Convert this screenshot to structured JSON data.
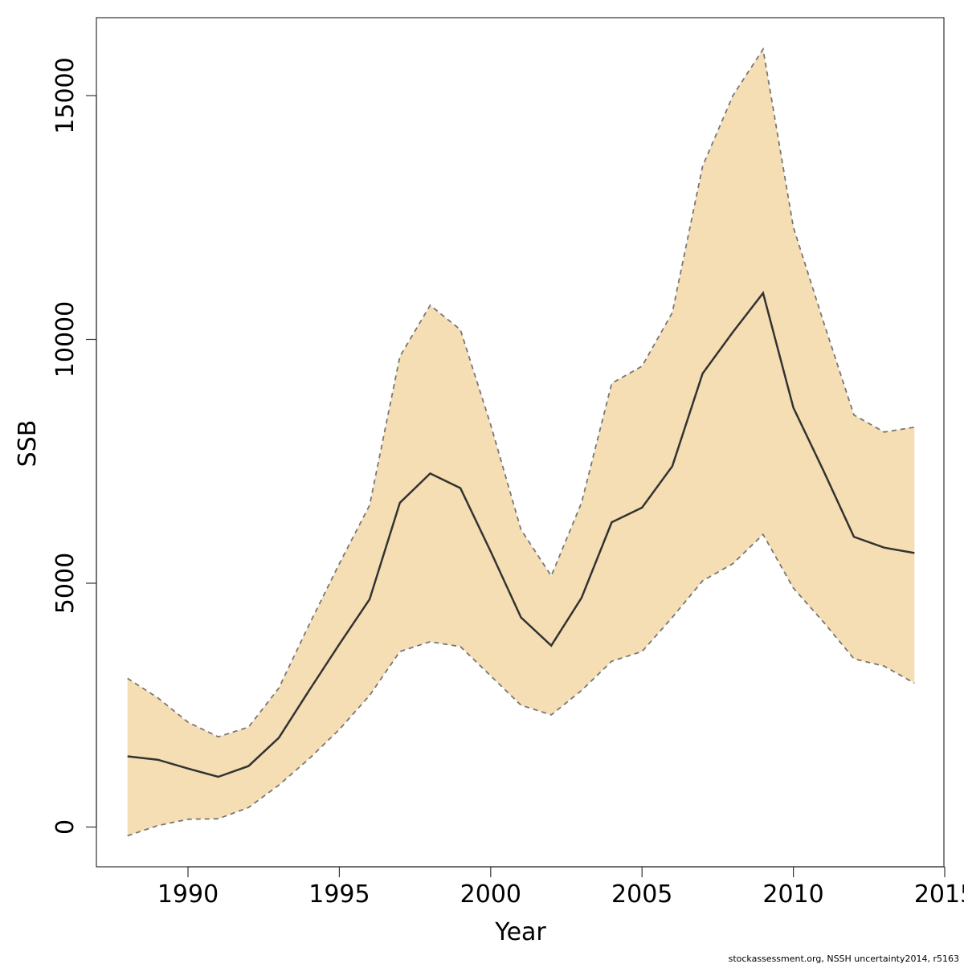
{
  "chart_data": {
    "type": "area",
    "xlabel": "Year",
    "ylabel": "SSB",
    "xlim": [
      1987,
      2015
    ],
    "ylim": [
      -800,
      16700
    ],
    "x_ticks": [
      1990,
      1995,
      2000,
      2005,
      2010,
      2015
    ],
    "y_ticks": [
      0,
      5000,
      10000,
      15000
    ],
    "grid": false,
    "colors": {
      "band": "#f5deb3",
      "line": "#333333",
      "bound": "#777777"
    },
    "x": [
      1988,
      1989,
      1990,
      1991,
      1992,
      1993,
      1994,
      1995,
      1996,
      1997,
      1998,
      1999,
      2000,
      2001,
      2002,
      2003,
      2004,
      2005,
      2006,
      2007,
      2008,
      2009,
      2010,
      2011,
      2012,
      2013,
      2014
    ],
    "series": [
      {
        "name": "",
        "role": "estimate",
        "values": [
          1450,
          1380,
          1200,
          1030,
          1250,
          1830,
          2800,
          3750,
          4670,
          6650,
          7250,
          6950,
          5650,
          4300,
          3720,
          4700,
          6250,
          6550,
          7400,
          9300,
          10150,
          10950,
          8600,
          7300,
          5950,
          5730,
          5620
        ]
      },
      {
        "name": "",
        "role": "upper",
        "values": [
          3050,
          2650,
          2150,
          1850,
          2050,
          2850,
          4150,
          5400,
          6600,
          9650,
          10700,
          10200,
          8250,
          6100,
          5150,
          6650,
          9100,
          9450,
          10550,
          13550,
          15000,
          15950,
          12300,
          10350,
          8450,
          8100,
          8200
        ]
      },
      {
        "name": "",
        "role": "lower",
        "values": [
          -180,
          30,
          160,
          170,
          400,
          860,
          1400,
          2000,
          2700,
          3600,
          3800,
          3700,
          3100,
          2500,
          2300,
          2800,
          3400,
          3600,
          4300,
          5050,
          5400,
          6000,
          4900,
          4200,
          3450,
          3300,
          2950
        ]
      }
    ]
  },
  "footer": {
    "note": "stockassessment.org, NSSH  uncertainty2014, r5163"
  }
}
